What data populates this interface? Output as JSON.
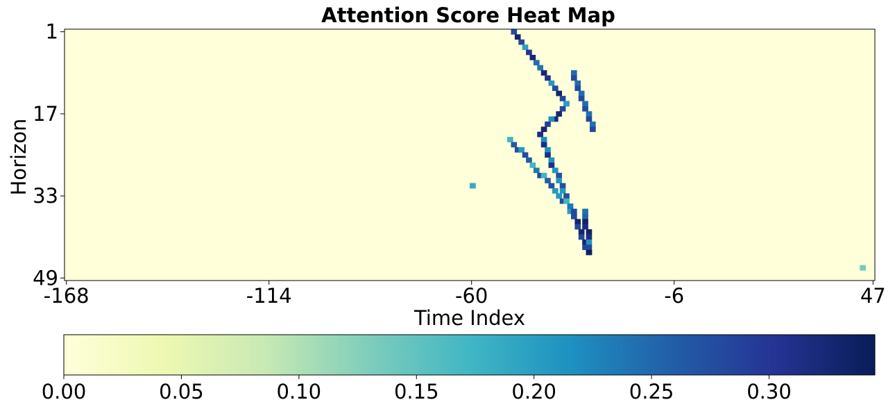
{
  "chart_data": {
    "type": "heatmap",
    "title": "Attention Score Heat Map",
    "xlabel": "Time Index",
    "ylabel": "Horizon",
    "x_range": [
      -168,
      47
    ],
    "y_range": [
      1,
      49
    ],
    "x_ticks": [
      "-168",
      "-114",
      "-60",
      "-6",
      "47"
    ],
    "x_tick_values": [
      -168,
      -114,
      -60,
      -6,
      47
    ],
    "y_ticks": [
      "1",
      "17",
      "33",
      "49"
    ],
    "y_tick_values": [
      1,
      17,
      33,
      49
    ],
    "colormap": "YlGnBu",
    "colorbar": {
      "min": 0.0,
      "max": 0.345,
      "ticks": [
        "0.00",
        "0.05",
        "0.10",
        "0.15",
        "0.20",
        "0.25",
        "0.30"
      ],
      "tick_values": [
        0.0,
        0.05,
        0.1,
        0.15,
        0.2,
        0.25,
        0.3
      ],
      "colors": [
        "#ffffd9",
        "#edf8b1",
        "#c7e9b4",
        "#7fcdbb",
        "#41b6c4",
        "#1d91c0",
        "#225ea8",
        "#253494",
        "#081d58"
      ]
    },
    "features": [
      {
        "name": "primary diagonal",
        "points": [
          [
            -49,
            1
          ],
          [
            -35,
            15
          ],
          [
            -42,
            21
          ],
          [
            -29,
            44
          ]
        ],
        "peak": 0.33
      },
      {
        "name": "secondary diagonal",
        "points": [
          [
            -33,
            9
          ],
          [
            -28,
            20
          ]
        ],
        "peak": 0.28
      },
      {
        "name": "upper block",
        "points": [
          [
            -50,
            22
          ],
          [
            -33,
            36
          ]
        ],
        "peak": 0.28
      },
      {
        "name": "hotspot",
        "points": [
          [
            -30,
            36
          ],
          [
            -29,
            44
          ]
        ],
        "peak": 0.34
      },
      {
        "name": "isolated",
        "points": [
          [
            -60,
            31
          ]
        ],
        "peak": 0.22
      },
      {
        "name": "right edge",
        "points": [
          [
            44,
            47
          ]
        ],
        "peak": 0.16
      }
    ]
  }
}
